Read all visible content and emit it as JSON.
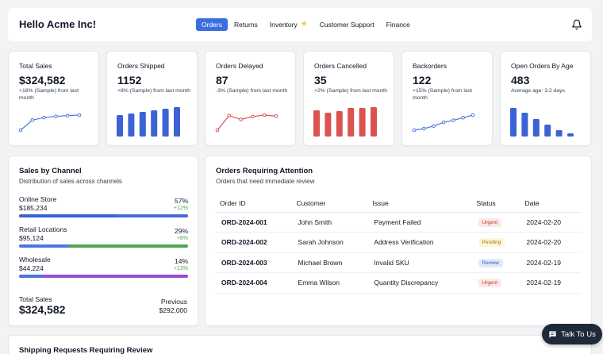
{
  "header": {
    "greeting": "Hello Acme Inc!",
    "nav": [
      {
        "label": "Orders",
        "active": true
      },
      {
        "label": "Returns",
        "active": false
      },
      {
        "label": "Inventory",
        "active": false,
        "icon": "star-icon"
      },
      {
        "label": "Customer Support",
        "active": false
      },
      {
        "label": "Finance",
        "active": false
      }
    ],
    "notification_icon": "bell-icon"
  },
  "kpis": [
    {
      "title": "Total Sales",
      "value": "$324,582",
      "sub": "+18% (Sample) from last month",
      "chart_type": "line",
      "color": "#4a77e0",
      "points": [
        3,
        7,
        8,
        8.5,
        8.8,
        9
      ]
    },
    {
      "title": "Orders Shipped",
      "value": "1152",
      "sub": "+8% (Sample) from last month",
      "chart_type": "bar",
      "color": "#3b63d4",
      "points": [
        27,
        29,
        31,
        33,
        35,
        37
      ]
    },
    {
      "title": "Orders Delayed",
      "value": "87",
      "sub": "-3% (Sample) from last month",
      "chart_type": "line",
      "color": "#d9534f",
      "points": [
        2,
        17,
        13,
        16,
        17.5,
        16.5
      ]
    },
    {
      "title": "Orders Cancelled",
      "value": "35",
      "sub": "+2% (Sample) from last month",
      "chart_type": "bar",
      "color": "#d9534f",
      "points": [
        33,
        30,
        32,
        36,
        36,
        37
      ]
    },
    {
      "title": "Backorders",
      "value": "122",
      "sub": "+15% (Sample) from last month",
      "chart_type": "line",
      "color": "#4a77e0",
      "points": [
        1,
        4,
        9,
        16,
        20,
        25,
        30
      ]
    },
    {
      "title": "Open Orders By Age",
      "value": "483",
      "sub": "Average age: 3.2 days",
      "chart_type": "bar",
      "color": "#3b63d4",
      "points": [
        36,
        30,
        22,
        15,
        8,
        4
      ]
    }
  ],
  "channels": {
    "title": "Sales by Channel",
    "subtitle": "Distribution of sales across channels",
    "rows": [
      {
        "name": "Online Store",
        "amount": "$185,234",
        "pct": "57%",
        "delta": "+12%",
        "fill": 0.57,
        "color": "#3b63d4"
      },
      {
        "name": "Retail Locations",
        "amount": "$95,124",
        "pct": "29%",
        "delta": "+8%",
        "fill": 0.29,
        "color": "#43a047"
      },
      {
        "name": "Wholesale",
        "amount": "$44,224",
        "pct": "14%",
        "delta": "+13%",
        "fill": 0.14,
        "color": "#8e44d4"
      }
    ],
    "total_label": "Total Sales",
    "total_value": "$324,582",
    "previous_label": "Previous",
    "previous_value": "$292,000"
  },
  "orders": {
    "title": "Orders Requiring Attention",
    "subtitle": "Orders that need immediate review",
    "columns": [
      "Order ID",
      "Customer",
      "Issue",
      "Status",
      "Date"
    ],
    "rows": [
      {
        "id": "ORD-2024-001",
        "customer": "John Smith",
        "issue": "Payment Failed",
        "status": "Urgent",
        "date": "2024-02-20"
      },
      {
        "id": "ORD-2024-002",
        "customer": "Sarah Johnson",
        "issue": "Address Verification",
        "status": "Pending",
        "date": "2024-02-20"
      },
      {
        "id": "ORD-2024-003",
        "customer": "Michael Brown",
        "issue": "Invalid SKU",
        "status": "Review",
        "date": "2024-02-19"
      },
      {
        "id": "ORD-2024-004",
        "customer": "Emma Wilson",
        "issue": "Quantity Discrepancy",
        "status": "Urgent",
        "date": "2024-02-19"
      }
    ],
    "status_colors": {
      "Urgent": {
        "bg": "#fde8e8",
        "fg": "#c0392b"
      },
      "Pending": {
        "bg": "#fdf6d8",
        "fg": "#9a7b0a"
      },
      "Review": {
        "bg": "#e3ebfb",
        "fg": "#2f56b8"
      }
    }
  },
  "shipping": {
    "title": "Shipping Requests Requiring Review"
  },
  "chat": {
    "label": "Talk To Us",
    "icon": "chat-icon"
  }
}
